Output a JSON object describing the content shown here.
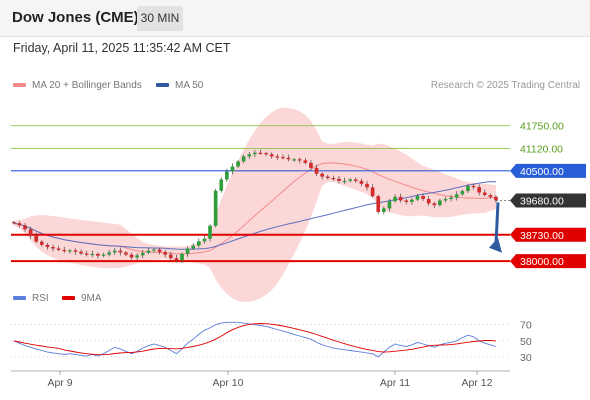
{
  "header": {
    "title": "Dow Jones (CME)",
    "timeframe": "30 MIN"
  },
  "datetime": "Friday, April 11, 2025 11:35:42 AM CET",
  "legend": {
    "ma20_label": "MA 20 + Bollinger Bands",
    "ma20_color": "#f28b8b",
    "ma50_label": "MA 50",
    "ma50_color": "#2f5aa0",
    "credit": "Research © 2025 Trading Central"
  },
  "rsi_legend": {
    "rsi_label": "RSI",
    "rsi_color": "#5b7fdc",
    "ma_label": "9MA",
    "ma_color": "#e00000"
  },
  "colors": {
    "up": "#2e9e3a",
    "down": "#d22b2b",
    "band": "#fbd0d0",
    "ma20": "#f28b8b",
    "ma50": "#5a6fc0"
  },
  "price_levels": [
    {
      "label": "41750.00",
      "value": 41750,
      "kind": "resistance",
      "color": "#8bc34a"
    },
    {
      "label": "41120.00",
      "value": 41120,
      "kind": "resistance",
      "color": "#8bc34a"
    },
    {
      "label": "40500.00",
      "value": 40500,
      "kind": "pivot",
      "color": "#2a5ed8"
    },
    {
      "label": "39680.00",
      "value": 39680,
      "kind": "last",
      "color": "#333333"
    },
    {
      "label": "38730.00",
      "value": 38730,
      "kind": "support",
      "color": "#e00000"
    },
    {
      "label": "38000.00",
      "value": 38000,
      "kind": "support",
      "color": "#e00000"
    }
  ],
  "rsi_axis": {
    "ticks": [
      70,
      50,
      30
    ]
  },
  "x_axis": {
    "labels": [
      "Apr 9",
      "Apr 10",
      "Apr 11",
      "Apr 12"
    ]
  },
  "chart_data": {
    "type": "candlestick",
    "interval": "30 MIN",
    "close": [
      39050,
      38990,
      38880,
      38700,
      38540,
      38450,
      38390,
      38350,
      38310,
      38280,
      38300,
      38260,
      38210,
      38180,
      38200,
      38150,
      38180,
      38240,
      38290,
      38240,
      38180,
      38100,
      38160,
      38230,
      38290,
      38320,
      38250,
      38180,
      38080,
      38020,
      38200,
      38350,
      38430,
      38550,
      38620,
      38980,
      39950,
      40260,
      40480,
      40620,
      40760,
      40900,
      40960,
      41000,
      40990,
      40960,
      40900,
      40880,
      40860,
      40820,
      40820,
      40790,
      40720,
      40580,
      40420,
      40340,
      40300,
      40280,
      40220,
      40220,
      40260,
      40220,
      40140,
      40040,
      39800,
      39360,
      39460,
      39660,
      39780,
      39680,
      39640,
      39700,
      39800,
      39720,
      39600,
      39550,
      39680,
      39720,
      39760,
      39850,
      39940,
      40080,
      40050,
      39900,
      39830,
      39780,
      39680
    ],
    "rsi": [
      50,
      47,
      44,
      42,
      40,
      38,
      36,
      35,
      34,
      33,
      34,
      33,
      32,
      31,
      33,
      31,
      34,
      38,
      42,
      40,
      37,
      34,
      37,
      41,
      44,
      46,
      44,
      42,
      38,
      34,
      40,
      47,
      52,
      58,
      63,
      66,
      70,
      72,
      73,
      73,
      73,
      72,
      71,
      70,
      69,
      68,
      66,
      64,
      62,
      60,
      58,
      56,
      54,
      52,
      48,
      45,
      43,
      41,
      40,
      39,
      38,
      37,
      36,
      35,
      34,
      30,
      36,
      42,
      46,
      44,
      43,
      45,
      48,
      46,
      44,
      42,
      45,
      47,
      48,
      50,
      54,
      57,
      55,
      50,
      47,
      45,
      43
    ],
    "ylim": [
      37200,
      42600
    ],
    "rsi_ylim": [
      20,
      82
    ]
  }
}
